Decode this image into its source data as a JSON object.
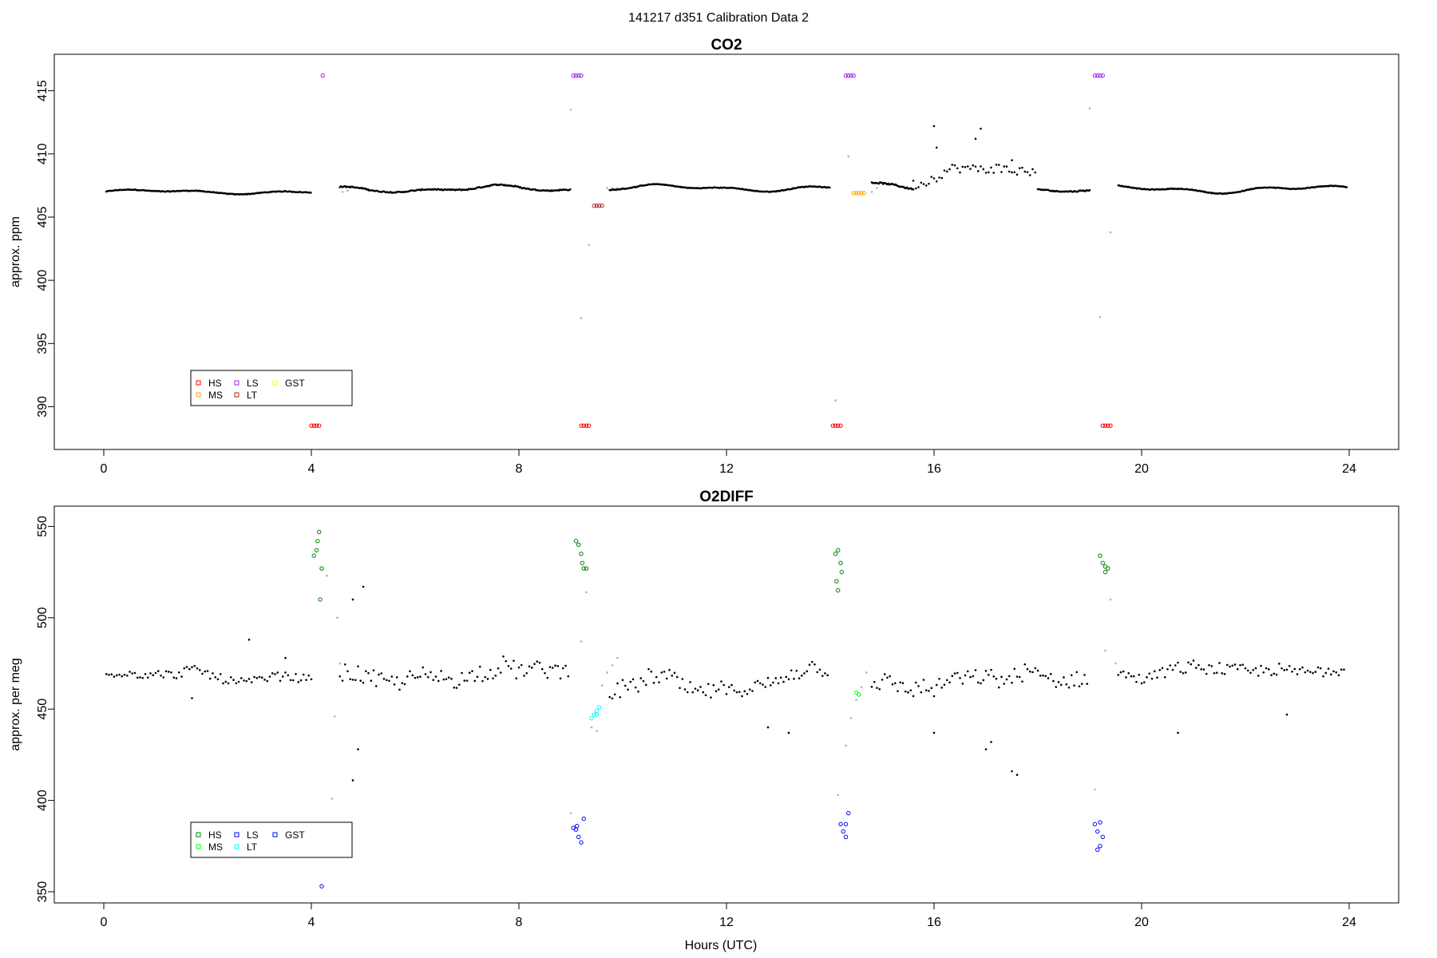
{
  "page_title": "141217   d351   Calibration Data 2",
  "xlabel": "Hours (UTC)",
  "colors": {
    "data": "#000000",
    "excluded": "#b0b0b0",
    "HS_co2": "#ff0000",
    "MS_co2": "#ffa500",
    "LS_co2": "#a020f0",
    "LT_co2": "#a52a2a",
    "GST_co2": "#ffff00",
    "HS_o2": "#008000",
    "MS_o2": "#00ff00",
    "LS_o2": "#0000ff",
    "LT_o2": "#00ffff",
    "GST_o2": "#0000ff"
  },
  "chart_data": [
    {
      "id": "co2",
      "type": "scatter",
      "title": "CO2",
      "ylabel": "approx. ppm",
      "xlim": [
        0,
        24
      ],
      "ylim": [
        387.5,
        417
      ],
      "xticks": [
        "0",
        "4",
        "8",
        "12",
        "16",
        "20",
        "24"
      ],
      "yticks": [
        "390",
        "395",
        "400",
        "405",
        "410",
        "415"
      ],
      "grid": false,
      "legend_position": "bottom-left",
      "legend": [
        {
          "label": "HS",
          "color": "#ff0000"
        },
        {
          "label": "LS",
          "color": "#a020f0"
        },
        {
          "label": "GST",
          "color": "#ffff00"
        },
        {
          "label": "MS",
          "color": "#ffa500"
        },
        {
          "label": "LT",
          "color": "#a52a2a"
        }
      ],
      "series": [
        {
          "name": "HS",
          "color": "#ff0000",
          "points": [
            [
              4.0,
              388.5
            ],
            [
              4.05,
              388.5
            ],
            [
              4.1,
              388.5
            ],
            [
              4.15,
              388.5
            ],
            [
              9.2,
              388.5
            ],
            [
              9.25,
              388.5
            ],
            [
              9.3,
              388.5
            ],
            [
              9.35,
              388.5
            ],
            [
              14.05,
              388.5
            ],
            [
              14.1,
              388.5
            ],
            [
              14.15,
              388.5
            ],
            [
              14.2,
              388.5
            ],
            [
              19.25,
              388.5
            ],
            [
              19.3,
              388.5
            ],
            [
              19.35,
              388.5
            ],
            [
              19.4,
              388.5
            ]
          ]
        },
        {
          "name": "LS",
          "color": "#a020f0",
          "points": [
            [
              4.22,
              416.2
            ],
            [
              9.05,
              416.2
            ],
            [
              9.1,
              416.2
            ],
            [
              9.15,
              416.2
            ],
            [
              9.2,
              416.2
            ],
            [
              14.3,
              416.2
            ],
            [
              14.35,
              416.2
            ],
            [
              14.4,
              416.2
            ],
            [
              14.45,
              416.2
            ],
            [
              19.1,
              416.2
            ],
            [
              19.15,
              416.2
            ],
            [
              19.2,
              416.2
            ],
            [
              19.25,
              416.2
            ]
          ]
        },
        {
          "name": "MS",
          "color": "#ffa500",
          "points": [
            [
              14.45,
              406.9
            ],
            [
              14.5,
              406.9
            ],
            [
              14.55,
              406.9
            ],
            [
              14.6,
              406.9
            ],
            [
              14.65,
              406.9
            ]
          ]
        },
        {
          "name": "LT",
          "color": "#a52a2a",
          "points": [
            [
              9.45,
              405.9
            ],
            [
              9.5,
              405.9
            ],
            [
              9.55,
              405.9
            ],
            [
              9.6,
              405.9
            ]
          ]
        },
        {
          "name": "excluded",
          "color": "#b0b0b0",
          "points": [
            [
              4.05,
              390.5
            ],
            [
              4.6,
              407.0
            ],
            [
              4.7,
              407.1
            ],
            [
              9.0,
              413.5
            ],
            [
              9.2,
              397.0
            ],
            [
              9.35,
              402.8
            ],
            [
              9.7,
              407.3
            ],
            [
              9.8,
              407.3
            ],
            [
              9.9,
              407.3
            ],
            [
              10.0,
              407.3
            ],
            [
              14.1,
              390.5
            ],
            [
              14.35,
              409.8
            ],
            [
              14.8,
              407.0
            ],
            [
              14.9,
              407.3
            ],
            [
              19.0,
              413.6
            ],
            [
              19.2,
              397.1
            ],
            [
              19.4,
              403.8
            ],
            [
              23.6,
              407.5
            ]
          ]
        },
        {
          "name": "data-co2",
          "color": "#000000",
          "segments": [
            {
              "x0": 0.05,
              "x1": 4.0,
              "step": 0.02,
              "base": 407.0,
              "amp": 0.2,
              "noise": 0.05
            },
            {
              "x0": 4.55,
              "x1": 9.0,
              "step": 0.02,
              "base": 407.2,
              "amp": 0.3,
              "noise": 0.08
            },
            {
              "x0": 9.75,
              "x1": 14.0,
              "step": 0.02,
              "base": 407.3,
              "amp": 0.3,
              "noise": 0.05
            },
            {
              "x0": 14.8,
              "x1": 15.6,
              "step": 0.02,
              "base": 407.6,
              "amp": 0.4,
              "noise": 0.1
            },
            {
              "x0": 15.6,
              "x1": 18.0,
              "step": 0.05,
              "base": 408.0,
              "amp": 0.5,
              "noise": 0.8
            },
            {
              "x0": 18.0,
              "x1": 19.0,
              "step": 0.02,
              "base": 407.2,
              "amp": 0.2,
              "noise": 0.08
            },
            {
              "x0": 19.55,
              "x1": 23.95,
              "step": 0.02,
              "base": 407.2,
              "amp": 0.35,
              "noise": 0.05
            }
          ],
          "outliers": [
            [
              16.0,
              412.2
            ],
            [
              16.05,
              410.5
            ],
            [
              16.8,
              411.2
            ],
            [
              16.9,
              412.0
            ],
            [
              17.5,
              409.5
            ]
          ]
        }
      ]
    },
    {
      "id": "o2diff",
      "type": "scatter",
      "title": "O2DIFF",
      "ylabel": "approx. per meg",
      "xlabel": "Hours (UTC)",
      "xlim": [
        0,
        24
      ],
      "ylim": [
        350,
        555
      ],
      "xticks": [
        "0",
        "4",
        "8",
        "12",
        "16",
        "20",
        "24"
      ],
      "yticks": [
        "350",
        "400",
        "450",
        "500",
        "550"
      ],
      "grid": false,
      "legend_position": "bottom-left",
      "legend": [
        {
          "label": "HS",
          "color": "#008000"
        },
        {
          "label": "LS",
          "color": "#0000ff"
        },
        {
          "label": "GST",
          "color": "#0000ff"
        },
        {
          "label": "MS",
          "color": "#00ff00"
        },
        {
          "label": "LT",
          "color": "#00ffff"
        }
      ],
      "series": [
        {
          "name": "HS",
          "color": "#008000",
          "points": [
            [
              4.05,
              534
            ],
            [
              4.1,
              537
            ],
            [
              4.12,
              542
            ],
            [
              4.15,
              547
            ],
            [
              4.2,
              527
            ],
            [
              4.17,
              510
            ],
            [
              9.1,
              542
            ],
            [
              9.15,
              540
            ],
            [
              9.2,
              535
            ],
            [
              9.22,
              530
            ],
            [
              9.25,
              527
            ],
            [
              9.3,
              527
            ],
            [
              14.1,
              535
            ],
            [
              14.15,
              537
            ],
            [
              14.2,
              530
            ],
            [
              14.12,
              520
            ],
            [
              14.15,
              515
            ],
            [
              14.22,
              525
            ],
            [
              19.2,
              534
            ],
            [
              19.25,
              530
            ],
            [
              19.3,
              528
            ],
            [
              19.35,
              527
            ],
            [
              19.3,
              525
            ]
          ]
        },
        {
          "name": "MS",
          "color": "#00ff00",
          "points": [
            [
              14.5,
              459
            ],
            [
              14.55,
              458
            ]
          ]
        },
        {
          "name": "LS",
          "color": "#0000ff",
          "points": [
            [
              4.2,
              353
            ],
            [
              9.05,
              385
            ],
            [
              9.1,
              384
            ],
            [
              9.15,
              380
            ],
            [
              9.2,
              377
            ],
            [
              9.25,
              390
            ],
            [
              9.12,
              386
            ],
            [
              14.2,
              387
            ],
            [
              14.25,
              383
            ],
            [
              14.3,
              380
            ],
            [
              14.35,
              393
            ],
            [
              14.3,
              387
            ],
            [
              19.1,
              387
            ],
            [
              19.15,
              383
            ],
            [
              19.2,
              375
            ],
            [
              19.25,
              380
            ],
            [
              19.15,
              373
            ],
            [
              19.2,
              388
            ]
          ]
        },
        {
          "name": "LT",
          "color": "#00ffff",
          "points": [
            [
              9.4,
              445
            ],
            [
              9.45,
              447
            ],
            [
              9.5,
              449
            ],
            [
              9.55,
              451
            ],
            [
              9.5,
              447
            ]
          ]
        },
        {
          "name": "excluded",
          "color": "#b0b0b0",
          "points": [
            [
              4.4,
              401
            ],
            [
              4.45,
              446
            ],
            [
              4.5,
              500
            ],
            [
              4.55,
              475
            ],
            [
              4.3,
              523
            ],
            [
              9.0,
              393
            ],
            [
              9.2,
              487
            ],
            [
              9.3,
              514
            ],
            [
              9.4,
              440
            ],
            [
              9.5,
              438
            ],
            [
              9.6,
              463
            ],
            [
              9.7,
              470
            ],
            [
              9.8,
              474
            ],
            [
              9.9,
              478
            ],
            [
              14.15,
              403
            ],
            [
              14.3,
              430
            ],
            [
              14.4,
              445
            ],
            [
              14.5,
              455
            ],
            [
              14.6,
              462
            ],
            [
              14.7,
              470
            ],
            [
              19.1,
              406
            ],
            [
              19.3,
              482
            ],
            [
              19.4,
              510
            ],
            [
              19.5,
              475
            ]
          ]
        },
        {
          "name": "data-o2",
          "color": "#000000",
          "segments": [
            {
              "x0": 0.05,
              "x1": 4.0,
              "step": 0.05,
              "base": 469,
              "amp": 2,
              "noise": 5
            },
            {
              "x0": 4.55,
              "x1": 9.0,
              "step": 0.05,
              "base": 468,
              "amp": 3,
              "noise": 9
            },
            {
              "x0": 9.75,
              "x1": 14.0,
              "step": 0.05,
              "base": 462,
              "amp": 5,
              "noise": 9
            },
            {
              "x0": 14.8,
              "x1": 19.0,
              "step": 0.05,
              "base": 463,
              "amp": 5,
              "noise": 9
            },
            {
              "x0": 19.55,
              "x1": 23.95,
              "step": 0.05,
              "base": 470,
              "amp": 3,
              "noise": 7
            }
          ],
          "outliers": [
            [
              1.7,
              456
            ],
            [
              2.8,
              488
            ],
            [
              3.5,
              478
            ],
            [
              4.8,
              411
            ],
            [
              4.9,
              428
            ],
            [
              5.0,
              517
            ],
            [
              4.8,
              510
            ],
            [
              12.8,
              440
            ],
            [
              13.2,
              437
            ],
            [
              16.0,
              437
            ],
            [
              17.0,
              428
            ],
            [
              17.1,
              432
            ],
            [
              17.5,
              416
            ],
            [
              17.6,
              414
            ],
            [
              20.7,
              437
            ],
            [
              22.8,
              447
            ]
          ]
        }
      ]
    }
  ]
}
